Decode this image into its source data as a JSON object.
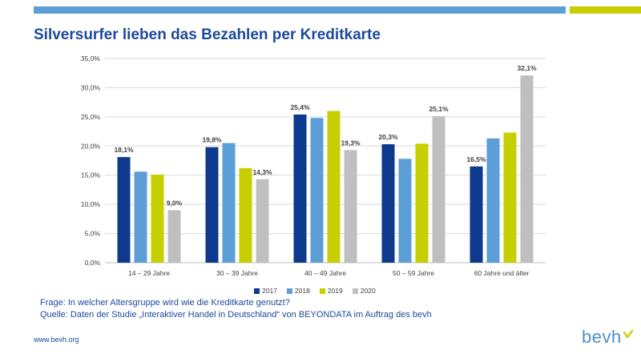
{
  "title": "Silversurfer lieben das Bezahlen per Kreditkarte",
  "chart_data": {
    "type": "bar",
    "categories": [
      "14 – 29 Jahre",
      "30 – 39 Jahre",
      "40 – 49 Jahre",
      "50 – 59 Jahre",
      "60 Jahre und älter"
    ],
    "series": [
      {
        "name": "2017",
        "color": "#0d3a8c",
        "values": [
          18.1,
          19.8,
          25.4,
          20.3,
          16.5
        ],
        "labels": [
          "18,1%",
          "19,8%",
          "25,4%",
          "20,3%",
          "16,5%"
        ]
      },
      {
        "name": "2018",
        "color": "#5b9fd6",
        "values": [
          15.6,
          20.5,
          24.8,
          17.8,
          21.3
        ],
        "labels": [
          "",
          "",
          "",
          "",
          ""
        ]
      },
      {
        "name": "2019",
        "color": "#c8cf00",
        "values": [
          15.1,
          16.2,
          26.0,
          20.4,
          22.3
        ],
        "labels": [
          "",
          "",
          "",
          "",
          ""
        ]
      },
      {
        "name": "2020",
        "color": "#bfbfbf",
        "values": [
          9.0,
          14.3,
          19.3,
          25.1,
          32.1
        ],
        "labels": [
          "9,0%",
          "14,3%",
          "19,3%",
          "25,1%",
          "32,1%"
        ]
      }
    ],
    "ylim": [
      0,
      35
    ],
    "yticks": [
      "0,0%",
      "5,0%",
      "10,0%",
      "15,0%",
      "20,0%",
      "25,0%",
      "30,0%",
      "35,0%"
    ],
    "grid": true,
    "legend_position": "bottom"
  },
  "notes": {
    "question": "Frage: In welcher Altersgruppe wird wie die Kreditkarte genutzt?",
    "source": "Quelle: Daten der Studie „Interaktiver Handel in Deutschland“ von BEYONDATA im Auftrag des bevh"
  },
  "footer": {
    "url": "www.bevh.org",
    "logo_text": "bevh"
  }
}
